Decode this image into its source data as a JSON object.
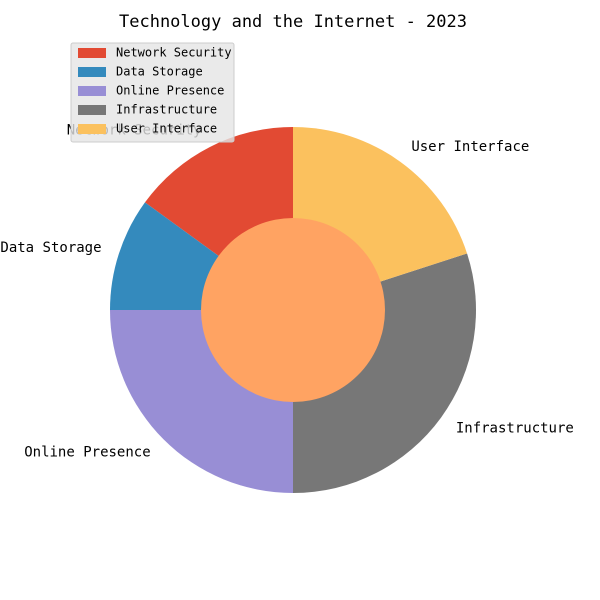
{
  "chart_data": {
    "type": "pie",
    "variant": "donut",
    "title": "Technology and the Internet - 2023",
    "categories": [
      "Network Security",
      "Data Storage",
      "Online Presence",
      "Infrastructure",
      "User Interface"
    ],
    "values": [
      15,
      10,
      25,
      30,
      20
    ],
    "colors": [
      "#E24A33",
      "#348ABD",
      "#988ED5",
      "#777777",
      "#FBC15E"
    ],
    "center_color": "#FFA362",
    "start_angle_deg": 90,
    "direction": "counterclockwise",
    "legend": {
      "position": "top-left",
      "entries": [
        "Network Security",
        "Data Storage",
        "Online Presence",
        "Infrastructure",
        "User Interface"
      ]
    }
  }
}
